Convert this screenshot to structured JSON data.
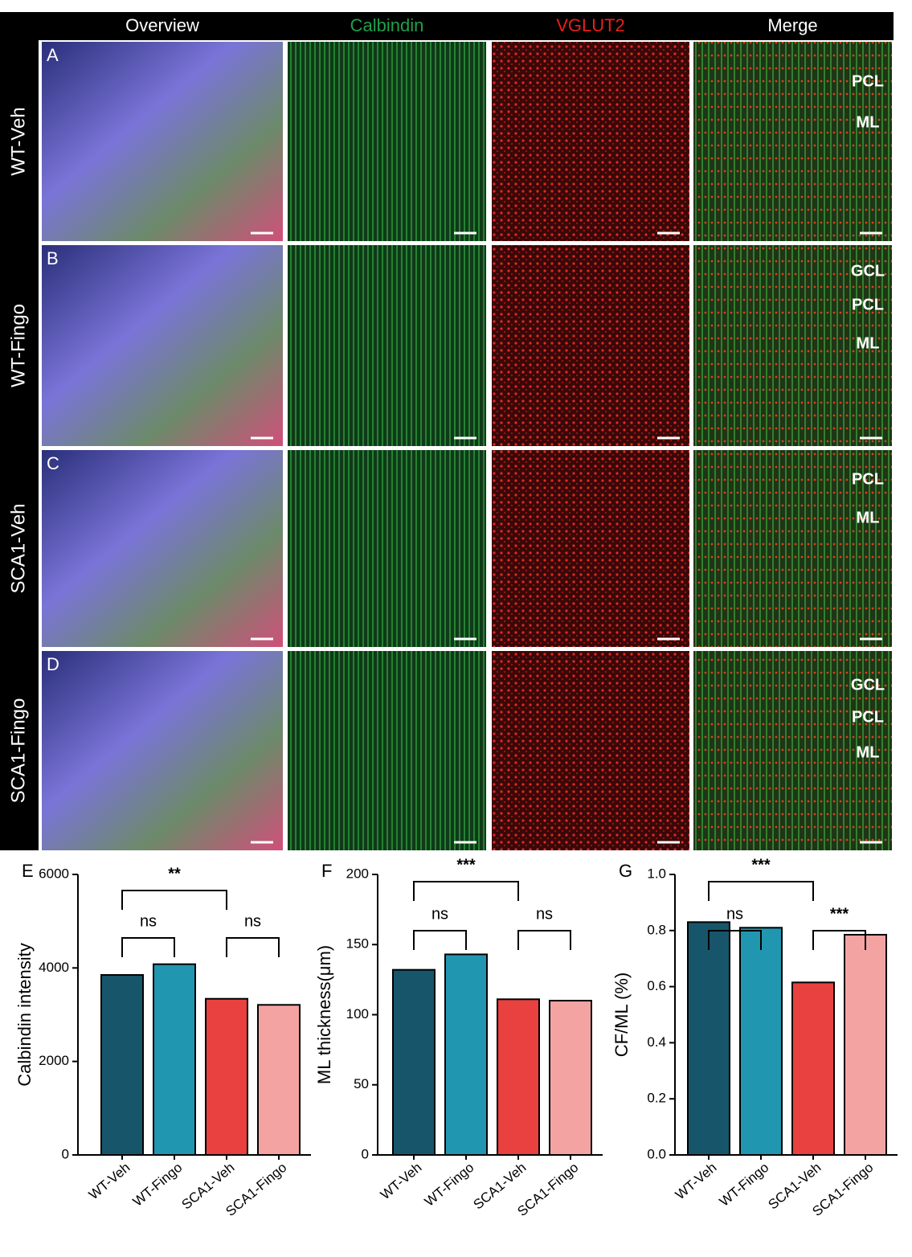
{
  "figure": {
    "columns": [
      "Overview",
      "Calbindin",
      "VGLUT2",
      "Merge"
    ],
    "image_rows": [
      {
        "panel": "A",
        "label": "WT-Veh",
        "layers": [
          "PCL",
          "ML"
        ]
      },
      {
        "panel": "B",
        "label": "WT-Fingo",
        "layers": [
          "GCL",
          "PCL",
          "ML"
        ]
      },
      {
        "panel": "C",
        "label": "SCA1-Veh",
        "layers": [
          "PCL",
          "ML"
        ]
      },
      {
        "panel": "D",
        "label": "SCA1-Fingo",
        "layers": [
          "GCL",
          "PCL",
          "ML"
        ]
      }
    ]
  },
  "chart_data": [
    {
      "type": "bar",
      "panel": "E",
      "y_label": "Calbindin intensity",
      "categories": [
        "WT-Veh",
        "WT-Fingo",
        "SCA1-Veh",
        "SCA1-Fingo"
      ],
      "values": [
        3850,
        4080,
        3340,
        3210
      ],
      "colors": [
        "#17566a",
        "#2196b0",
        "#e8413f",
        "#f4a3a3"
      ],
      "ylim": [
        0,
        6000
      ],
      "yticks": [
        0,
        2000,
        4000,
        6000
      ],
      "annotations": [
        "**",
        "ns",
        "ns"
      ]
    },
    {
      "type": "bar",
      "panel": "F",
      "y_label": "ML thickness(μm)",
      "categories": [
        "WT-Veh",
        "WT-Fingo",
        "SCA1-Veh",
        "SCA1-Fingo"
      ],
      "values": [
        132,
        143,
        111,
        110
      ],
      "colors": [
        "#17566a",
        "#2196b0",
        "#e8413f",
        "#f4a3a3"
      ],
      "ylim": [
        0,
        200
      ],
      "yticks": [
        0,
        50,
        100,
        150,
        200
      ],
      "annotations": [
        "***",
        "ns",
        "ns"
      ]
    },
    {
      "type": "bar",
      "panel": "G",
      "y_label": "CF/ML (%)",
      "categories": [
        "WT-Veh",
        "WT-Fingo",
        "SCA1-Veh",
        "SCA1-Fingo"
      ],
      "values": [
        0.83,
        0.81,
        0.615,
        0.785
      ],
      "colors": [
        "#17566a",
        "#2196b0",
        "#e8413f",
        "#f4a3a3"
      ],
      "ylim": [
        0,
        1.0
      ],
      "yticks": [
        {
          "value": 0,
          "label": "0.0"
        },
        0.2,
        0.4,
        0.6,
        0.8,
        {
          "value": 1,
          "label": "1.0"
        }
      ],
      "annotations": [
        "***",
        "ns",
        "***"
      ]
    }
  ]
}
